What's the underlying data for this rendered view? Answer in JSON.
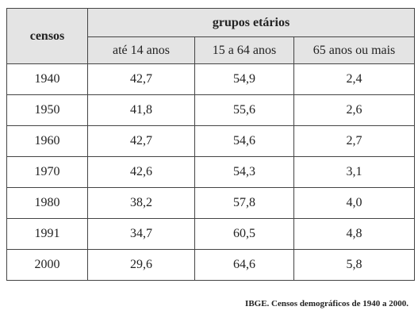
{
  "table": {
    "header": {
      "first": "censos",
      "group": "grupos etários",
      "columns": [
        "até 14 anos",
        "15 a 64 anos",
        "65 anos ou mais"
      ]
    },
    "rows": [
      [
        "1940",
        "42,7",
        "54,9",
        "2,4"
      ],
      [
        "1950",
        "41,8",
        "55,6",
        "2,6"
      ],
      [
        "1960",
        "42,7",
        "54,6",
        "2,7"
      ],
      [
        "1970",
        "42,6",
        "54,3",
        "3,1"
      ],
      [
        "1980",
        "38,2",
        "57,8",
        "4,0"
      ],
      [
        "1991",
        "34,7",
        "60,5",
        "4,8"
      ],
      [
        "2000",
        "29,6",
        "64,6",
        "5,8"
      ]
    ]
  },
  "source": "IBGE. Censos demográficos de 1940 a 2000."
}
